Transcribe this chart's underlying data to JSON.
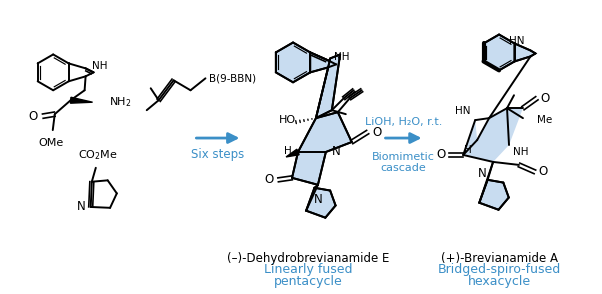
{
  "bg_color": "#ffffff",
  "blue": "#3B8FC7",
  "black": "#000000",
  "lb": "#C8DCF0",
  "figsize": [
    6.02,
    2.94
  ],
  "dpi": 100,
  "arrow1_label": "Six steps",
  "arrow2_l1": "LiOH, H₂O, r.t.",
  "arrow2_l2": "Biomimetic",
  "arrow2_l3": "cascade",
  "bbbn": "B(9-BBN)",
  "comp1": "(–)-Dehydrobrevianamide E",
  "comp1s1": "Linearly fused",
  "comp1s2": "pentacycle",
  "comp2": "(+)-Brevianamide A",
  "comp2s1": "Bridged-spiro-fused",
  "comp2s2": "hexacycle"
}
